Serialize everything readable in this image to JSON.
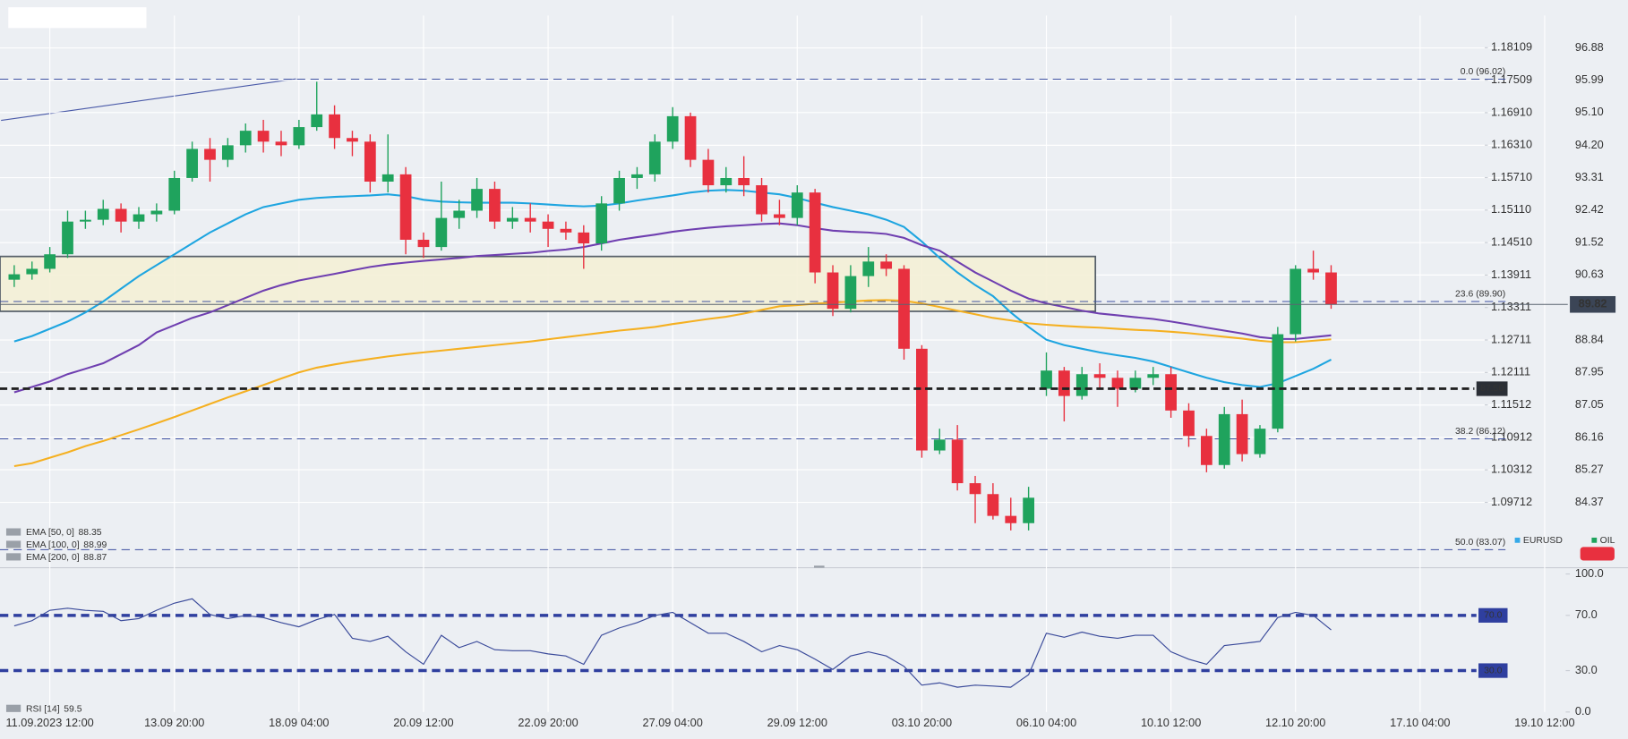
{
  "chart_data": [
    {
      "type": "candlestick",
      "name": "OIL",
      "up_color": "#1fa35d",
      "down_color": "#e8303f",
      "categories": [
        null,
        null,
        "11.09.2023 12:00",
        null,
        null,
        null,
        null,
        null,
        null,
        "13.09 20:00",
        null,
        null,
        null,
        null,
        null,
        null,
        "18.09 04:00",
        null,
        null,
        null,
        null,
        null,
        null,
        "20.09 12:00",
        null,
        null,
        null,
        null,
        null,
        null,
        "22.09 20:00",
        null,
        null,
        null,
        null,
        null,
        null,
        "27.09 04:00",
        null,
        null,
        null,
        null,
        null,
        null,
        "29.09 12:00",
        null,
        null,
        null,
        null,
        null,
        null,
        "03.10 20:00",
        null,
        null,
        null,
        null,
        null,
        null,
        "06.10 04:00",
        null,
        null,
        null,
        null,
        null,
        null,
        "10.10 12:00",
        null,
        null,
        null,
        null,
        null,
        null,
        "12.10 20:00",
        null,
        null,
        null,
        null,
        null,
        null,
        "17.10 04:00",
        null,
        null,
        null,
        null,
        null,
        null,
        "19.10 12:00"
      ],
      "open": [
        90.5,
        90.65,
        90.8,
        91.2,
        92.1,
        92.15,
        92.45,
        92.1,
        92.3,
        92.4,
        93.3,
        94.1,
        93.8,
        94.2,
        94.6,
        94.3,
        94.2,
        94.7,
        95.05,
        94.4,
        94.3,
        93.2,
        93.4,
        91.6,
        91.4,
        92.2,
        92.4,
        93.0,
        92.1,
        92.2,
        92.1,
        91.9,
        91.8,
        91.5,
        92.6,
        93.3,
        93.4,
        94.3,
        95.0,
        93.8,
        93.1,
        93.3,
        93.1,
        92.3,
        92.2,
        92.9,
        90.7,
        89.7,
        90.6,
        91.0,
        90.8,
        88.6,
        85.8,
        86.1,
        84.9,
        84.6,
        84.0,
        83.8,
        87.5,
        88.0,
        87.3,
        87.9,
        87.8,
        87.5,
        87.8,
        87.9,
        86.9,
        86.2,
        85.4,
        86.8,
        85.7,
        86.4,
        89.0,
        90.8,
        90.7,
        null,
        null,
        null,
        null,
        null,
        null,
        null,
        null,
        null,
        null,
        null,
        null
      ],
      "high": [
        90.9,
        91.0,
        91.4,
        92.4,
        92.4,
        92.7,
        92.6,
        92.5,
        92.6,
        93.5,
        94.3,
        94.4,
        94.4,
        94.8,
        94.9,
        94.6,
        94.9,
        95.95,
        95.3,
        94.6,
        94.5,
        94.5,
        93.6,
        91.8,
        93.2,
        92.7,
        93.3,
        93.2,
        92.5,
        92.6,
        92.3,
        92.1,
        92.0,
        92.8,
        93.5,
        93.6,
        94.5,
        95.25,
        95.1,
        94.1,
        93.6,
        93.9,
        93.3,
        92.7,
        93.1,
        93.0,
        90.9,
        90.9,
        91.4,
        91.2,
        90.9,
        88.7,
        86.4,
        86.5,
        85.1,
        84.9,
        84.5,
        84.8,
        88.5,
        88.1,
        88.1,
        88.2,
        88.0,
        88.0,
        88.1,
        88.1,
        87.1,
        86.4,
        87.0,
        87.2,
        86.5,
        89.2,
        90.9,
        91.3,
        90.9,
        null,
        null,
        null,
        null,
        null,
        null,
        null,
        null,
        null,
        null,
        null,
        null
      ],
      "low": [
        90.3,
        90.5,
        90.7,
        91.1,
        91.9,
        92.0,
        91.8,
        91.9,
        92.1,
        92.3,
        93.2,
        93.2,
        93.6,
        94.0,
        94.0,
        93.9,
        94.1,
        94.6,
        94.1,
        93.9,
        92.9,
        92.9,
        91.2,
        91.1,
        91.3,
        91.9,
        92.2,
        91.9,
        91.9,
        91.8,
        91.4,
        91.6,
        90.8,
        91.3,
        92.4,
        93.0,
        93.2,
        94.1,
        93.6,
        92.9,
        92.9,
        92.8,
        92.1,
        92.0,
        92.0,
        90.4,
        89.5,
        89.6,
        90.3,
        90.6,
        88.3,
        85.6,
        85.7,
        84.7,
        83.8,
        83.9,
        83.6,
        83.6,
        87.3,
        86.6,
        87.2,
        87.5,
        87.0,
        87.4,
        87.6,
        86.7,
        85.9,
        85.2,
        85.3,
        85.5,
        85.6,
        86.3,
        88.8,
        90.5,
        89.7,
        null,
        null,
        null,
        null,
        null,
        null,
        null,
        null,
        null,
        null,
        null,
        null
      ],
      "close": [
        90.65,
        90.8,
        91.2,
        92.1,
        92.15,
        92.45,
        92.1,
        92.3,
        92.4,
        93.3,
        94.1,
        93.8,
        94.2,
        94.6,
        94.3,
        94.2,
        94.7,
        95.05,
        94.4,
        94.3,
        93.2,
        93.4,
        91.6,
        91.4,
        92.2,
        92.4,
        93.0,
        92.1,
        92.2,
        92.1,
        91.9,
        91.8,
        91.5,
        92.6,
        93.3,
        93.4,
        94.3,
        95.0,
        93.8,
        93.1,
        93.3,
        93.1,
        92.3,
        92.2,
        92.9,
        90.7,
        89.7,
        90.6,
        91.0,
        90.8,
        88.6,
        85.8,
        86.1,
        84.9,
        84.6,
        84.0,
        83.8,
        84.5,
        88.0,
        87.3,
        87.9,
        87.8,
        87.5,
        87.8,
        87.9,
        86.9,
        86.2,
        85.4,
        86.8,
        85.7,
        86.4,
        89.0,
        90.8,
        90.7,
        89.82,
        null,
        null,
        null,
        null,
        null,
        null,
        null,
        null,
        null,
        null,
        null,
        null
      ],
      "series": [
        {
          "name": "EMA [50, 0]",
          "color": "#1ea5e0",
          "legend_value": 88.35,
          "values": [
            88.8,
            88.95,
            89.15,
            89.35,
            89.6,
            89.9,
            90.25,
            90.6,
            90.9,
            91.2,
            91.5,
            91.8,
            92.05,
            92.3,
            92.5,
            92.6,
            92.7,
            92.75,
            92.78,
            92.8,
            92.82,
            92.85,
            92.8,
            92.7,
            92.65,
            92.63,
            92.62,
            92.62,
            92.62,
            92.6,
            92.57,
            92.54,
            92.52,
            92.54,
            92.6,
            92.68,
            92.75,
            92.82,
            92.9,
            92.95,
            92.97,
            92.95,
            92.9,
            92.85,
            92.75,
            92.62,
            92.5,
            92.4,
            92.3,
            92.15,
            91.95,
            91.55,
            91.1,
            90.7,
            90.35,
            90.05,
            89.6,
            89.2,
            88.85,
            88.7,
            88.6,
            88.5,
            88.42,
            88.35,
            88.25,
            88.1,
            87.95,
            87.8,
            87.68,
            87.6,
            87.55,
            87.65,
            87.85,
            88.05,
            88.3,
            null,
            null,
            null,
            null,
            null,
            null,
            null,
            null,
            null,
            null,
            null,
            null
          ]
        },
        {
          "name": "EMA [100, 0]",
          "color": "#6f3fb0",
          "legend_value": 88.99,
          "values": [
            87.4,
            87.55,
            87.7,
            87.9,
            88.05,
            88.2,
            88.45,
            88.7,
            89.05,
            89.25,
            89.45,
            89.6,
            89.8,
            90.0,
            90.2,
            90.35,
            90.48,
            90.57,
            90.66,
            90.76,
            90.85,
            90.92,
            90.97,
            91.02,
            91.06,
            91.1,
            91.15,
            91.18,
            91.21,
            91.24,
            91.29,
            91.33,
            91.4,
            91.5,
            91.6,
            91.67,
            91.74,
            91.82,
            91.88,
            91.93,
            91.97,
            92.0,
            92.03,
            92.05,
            92.0,
            91.92,
            91.85,
            91.82,
            91.8,
            91.76,
            91.65,
            91.45,
            91.3,
            91.0,
            90.7,
            90.45,
            90.2,
            89.98,
            89.85,
            89.75,
            89.65,
            89.57,
            89.52,
            89.47,
            89.42,
            89.35,
            89.27,
            89.18,
            89.1,
            89.02,
            88.92,
            88.87,
            88.87,
            88.92,
            88.97,
            null,
            null,
            null,
            null,
            null,
            null,
            null,
            null,
            null,
            null,
            null,
            null
          ]
        },
        {
          "name": "EMA [200, 0]",
          "color": "#f5b021",
          "legend_value": 88.87,
          "values": [
            85.37,
            85.45,
            85.6,
            85.75,
            85.92,
            86.06,
            86.22,
            86.38,
            86.55,
            86.72,
            86.9,
            87.08,
            87.26,
            87.43,
            87.6,
            87.78,
            87.95,
            88.08,
            88.17,
            88.25,
            88.32,
            88.39,
            88.45,
            88.5,
            88.55,
            88.6,
            88.65,
            88.7,
            88.75,
            88.8,
            88.86,
            88.92,
            88.98,
            89.04,
            89.1,
            89.15,
            89.2,
            89.28,
            89.35,
            89.42,
            89.48,
            89.57,
            89.67,
            89.77,
            89.8,
            89.84,
            89.87,
            89.9,
            89.93,
            89.94,
            89.92,
            89.85,
            89.75,
            89.65,
            89.55,
            89.45,
            89.38,
            89.3,
            89.26,
            89.23,
            89.2,
            89.18,
            89.15,
            89.12,
            89.1,
            89.07,
            89.03,
            88.98,
            88.93,
            88.88,
            88.82,
            88.78,
            88.78,
            88.82,
            88.86,
            null,
            null,
            null,
            null,
            null,
            null,
            null,
            null,
            null,
            null,
            null,
            null
          ]
        }
      ],
      "ylim": [
        82.63,
        97.77
      ],
      "yticks": [
        96.88,
        95.99,
        {
          "value": 95.1,
          "label": "95.10"
        },
        {
          "value": 94.2,
          "label": "94.20"
        },
        93.31,
        92.42,
        91.52,
        90.63,
        88.84,
        87.95,
        87.05,
        86.16,
        85.27,
        84.37
      ],
      "y2_name": "EURUSD",
      "y2_color": "#35a9e8",
      "y2lim": [
        1.08543,
        1.18703
      ],
      "y2ticks": [
        1.18109,
        1.17509,
        {
          "value": 1.1691,
          "label": "1.16910"
        },
        {
          "value": 1.1631,
          "label": "1.16310"
        },
        {
          "value": 1.1571,
          "label": "1.15710"
        },
        {
          "value": 1.1511,
          "label": "1.15110"
        },
        {
          "value": 1.1451,
          "label": "1.14510"
        },
        1.13911,
        1.13311,
        1.12711,
        1.12111,
        1.11512,
        1.10912,
        1.10312,
        1.09712
      ],
      "grid": true,
      "zone": {
        "from": 89.63,
        "to": 91.14
      },
      "fib_levels": [
        {
          "value": 96.02,
          "label": "0.0 (96.02)"
        },
        {
          "value": 89.9,
          "label": "23.6 (89.90)"
        },
        {
          "value": 86.12,
          "label": "38.2 (86.12)"
        },
        {
          "value": 83.07,
          "label": "50.0 (83.07)"
        }
      ],
      "hlines": [
        {
          "value": 87.5,
          "label": "87.50"
        }
      ],
      "last_price": 89.82
    },
    {
      "type": "line",
      "ylim": [
        0,
        100
      ],
      "yticks": [
        {
          "value": 100,
          "label": "100.0"
        },
        {
          "value": 70,
          "label": "70.0"
        },
        {
          "value": 30,
          "label": "30.0"
        },
        {
          "value": 0,
          "label": "0.0"
        }
      ],
      "levels": [
        {
          "value": 70,
          "label": "70.0"
        },
        {
          "value": 30,
          "label": "30.0"
        }
      ],
      "series": [
        {
          "name": "RSI [14]",
          "color": "#3a4a9a",
          "legend_value": 59.5,
          "values": [
            62.4,
            66.2,
            73.7,
            75.2,
            73.7,
            72.9,
            66.2,
            67.7,
            73.7,
            78.9,
            82.0,
            70.7,
            67.7,
            69.9,
            68.4,
            64.7,
            61.7,
            66.9,
            70.7,
            53.4,
            51.1,
            54.9,
            43.6,
            34.6,
            55.6,
            46.6,
            51.1,
            45.1,
            44.4,
            44.4,
            42.1,
            40.6,
            34.6,
            55.6,
            60.9,
            64.7,
            69.9,
            72.2,
            64.7,
            57.1,
            57.1,
            51.1,
            43.6,
            48.1,
            45.1,
            38.3,
            30.8,
            40.6,
            43.6,
            40.6,
            33.1,
            19.5,
            21.1,
            18.0,
            19.5,
            18.8,
            18.0,
            27.1,
            57.1,
            54.1,
            57.9,
            54.9,
            53.4,
            55.6,
            55.6,
            43.6,
            38.3,
            34.6,
            48.1,
            49.6,
            51.1,
            68.4,
            72.2,
            69.9,
            59.5,
            null,
            null,
            null,
            null,
            null,
            null,
            null,
            null,
            null,
            null,
            null,
            null
          ]
        }
      ]
    }
  ]
}
